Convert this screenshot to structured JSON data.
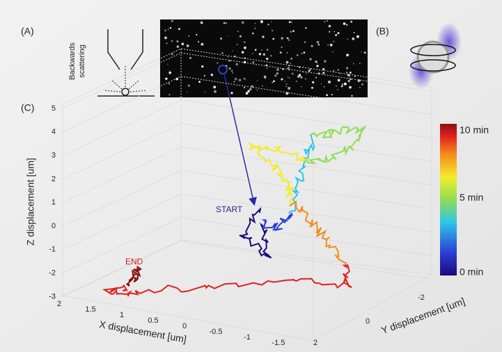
{
  "figure": {
    "panel_labels": [
      "(A)",
      "(B)",
      "(C)"
    ],
    "scattering_label": [
      "Backwards",
      "scattering"
    ],
    "z_axis": {
      "title": "Z displacement [um]",
      "ticks": [
        "5",
        "4",
        "3",
        "2",
        "1",
        "0",
        "-1",
        "-2",
        "-3"
      ]
    },
    "x_axis": {
      "title": "X displacement [um]",
      "ticks": [
        "2",
        "1.5",
        "1",
        "0.5",
        "0",
        "-0.5",
        "-1",
        "-1.5"
      ]
    },
    "y_axis": {
      "title": "Y displacement [um]",
      "ticks": [
        "2",
        "0",
        "-2"
      ]
    },
    "colorbar": [
      "10 min",
      "5 min",
      "0 min"
    ],
    "annotations": {
      "start": "START",
      "end": "END"
    }
  }
}
